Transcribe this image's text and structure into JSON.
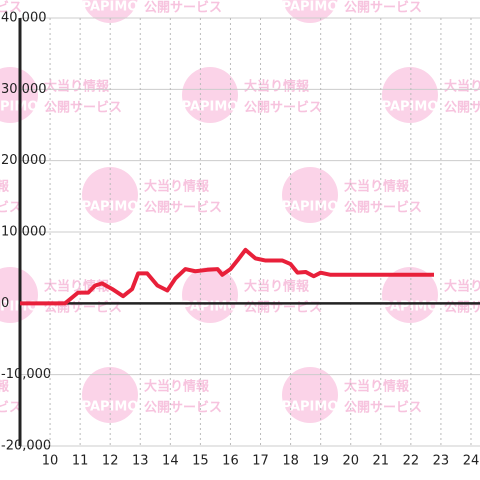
{
  "chart_data": {
    "type": "line",
    "watermark": {
      "brand": "PAPIMO",
      "line1": "大当り情報",
      "line2": "公開サービス"
    },
    "x": [
      9.0,
      10.5,
      10.93,
      11.27,
      11.5,
      11.73,
      12.07,
      12.43,
      12.73,
      12.93,
      13.23,
      13.57,
      13.9,
      14.17,
      14.5,
      14.83,
      15.23,
      15.57,
      15.73,
      16.0,
      16.23,
      16.5,
      16.83,
      17.17,
      17.73,
      18.0,
      18.23,
      18.5,
      18.77,
      19.0,
      19.33,
      22.77
    ],
    "series": [
      {
        "color": "#e8203a",
        "values": [
          0,
          0,
          1500,
          1500,
          2500,
          2800,
          2000,
          1000,
          2000,
          4200,
          4200,
          2500,
          1800,
          3500,
          4800,
          4500,
          4700,
          4800,
          4000,
          4800,
          6000,
          7500,
          6300,
          6000,
          6000,
          5500,
          4300,
          4400,
          3800,
          4300,
          4000,
          4000
        ]
      }
    ],
    "xlim": [
      9,
      24.3
    ],
    "xticks": [
      10,
      11,
      12,
      13,
      14,
      15,
      16,
      17,
      18,
      19,
      20,
      21,
      22,
      23,
      24
    ],
    "ylim": [
      -20000,
      40000
    ],
    "yticks": [
      {
        "value": -20000,
        "label": "-20,000"
      },
      {
        "value": -10000,
        "label": "-10,000"
      },
      0,
      {
        "value": 10000,
        "label": "10,000"
      },
      {
        "value": 20000,
        "label": "20,000"
      },
      {
        "value": 30000,
        "label": "30,000"
      },
      {
        "value": 40000,
        "label": "40,000"
      }
    ],
    "grid": true
  }
}
